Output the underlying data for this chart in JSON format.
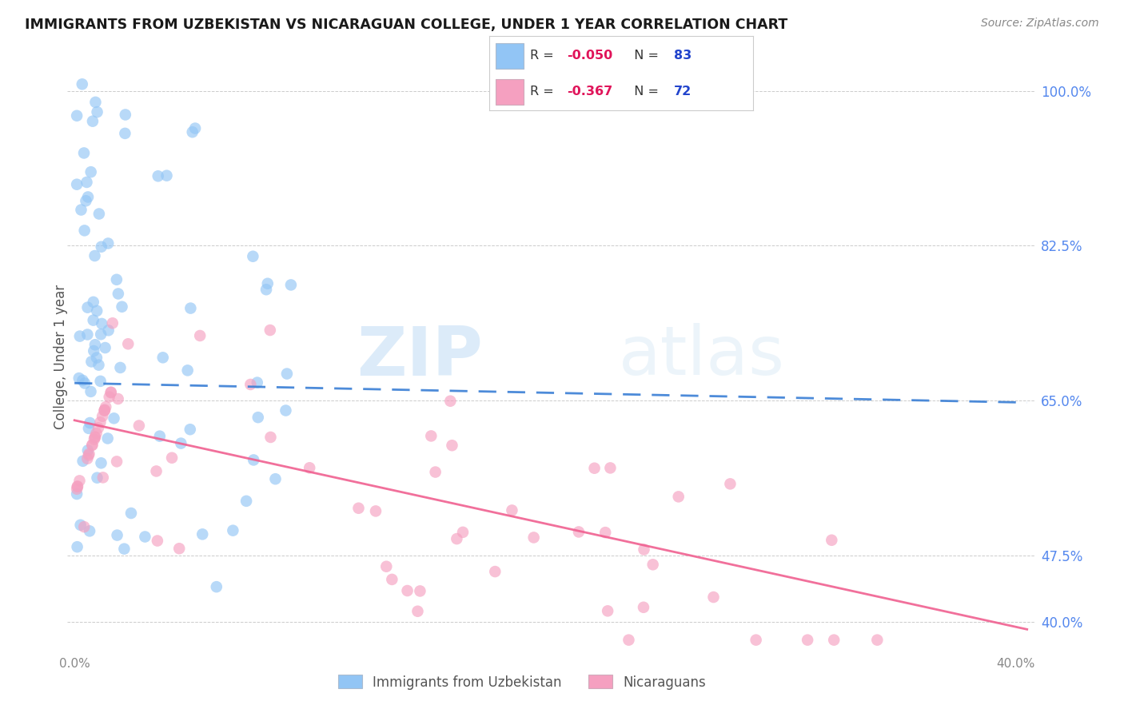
{
  "title": "IMMIGRANTS FROM UZBEKISTAN VS NICARAGUAN COLLEGE, UNDER 1 YEAR CORRELATION CHART",
  "source": "Source: ZipAtlas.com",
  "ylabel": "College, Under 1 year",
  "xlim": [
    -0.003,
    0.408
  ],
  "ylim": [
    0.37,
    1.03
  ],
  "right_yticks": [
    1.0,
    0.825,
    0.65,
    0.475
  ],
  "right_ytick_labels": [
    "100.0%",
    "82.5%",
    "65.0%",
    "47.5%"
  ],
  "right_ytick_extra": 0.4,
  "right_ytick_extra_label": "40.0%",
  "grid_color": "#cccccc",
  "watermark_ZIP": "ZIP",
  "watermark_atlas": "atlas",
  "watermark_color_ZIP": "#c5dff5",
  "watermark_color_atlas": "#d5e8f5",
  "uzbek_color": "#92c5f5",
  "nicaraguan_color": "#f5a0c0",
  "uzbek_R": -0.05,
  "uzbek_N": 83,
  "nicaraguan_R": -0.367,
  "nicaraguan_N": 72,
  "uzbek_label": "Immigrants from Uzbekistan",
  "nicaraguan_label": "Nicaraguans",
  "legend_R_label_color": "#333333",
  "legend_R_value_color": "#e0145a",
  "legend_N_label_color": "#333333",
  "legend_N_value_color": "#2244cc",
  "uzbek_trend_color": "#3a7fd5",
  "nicaraguan_trend_color": "#f06090",
  "uzbek_trend_y0": 0.67,
  "uzbek_trend_y1": 0.648,
  "nicaraguan_trend_y0": 0.628,
  "nicaraguan_trend_y1": 0.392,
  "tick_color": "#888888"
}
